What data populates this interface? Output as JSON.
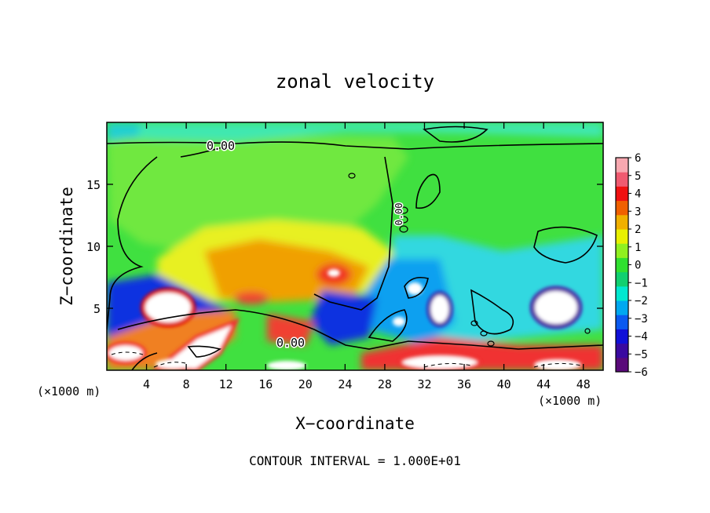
{
  "chart_data": {
    "type": "heatmap",
    "title": "zonal velocity",
    "xlabel": "X−coordinate",
    "ylabel": "Z−coordinate",
    "x_unit_left": "(×1000 m)",
    "x_unit_right": "(×1000 m)",
    "footer": "CONTOUR INTERVAL = 1.000E+01",
    "xlim": [
      0,
      50
    ],
    "ylim": [
      0,
      20
    ],
    "xticks": [
      4,
      8,
      12,
      16,
      20,
      24,
      28,
      32,
      36,
      40,
      44,
      48
    ],
    "yticks": [
      5,
      10,
      15
    ],
    "contour_labels": [
      {
        "text": "0.00",
        "x": 11,
        "z": 18.5
      },
      {
        "text": "0.00",
        "x": 18.5,
        "z": 2.2
      },
      {
        "text": "0.00",
        "x": 30,
        "z": 13
      }
    ],
    "colorbar": {
      "min": -6,
      "max": 6,
      "tick_labels": [
        "6",
        "5",
        "4",
        "3",
        "2",
        "1",
        "0",
        "−1",
        "−2",
        "−3",
        "−4",
        "−5",
        "−6"
      ],
      "colors": [
        "#5a0a7a",
        "#3a0aa0",
        "#1010d8",
        "#0a5af0",
        "#00a8f0",
        "#00e8d0",
        "#10d070",
        "#30e030",
        "#90f020",
        "#e8f000",
        "#f0b000",
        "#f06000",
        "#f01010",
        "#f05a70",
        "#f8a8b0"
      ]
    }
  }
}
